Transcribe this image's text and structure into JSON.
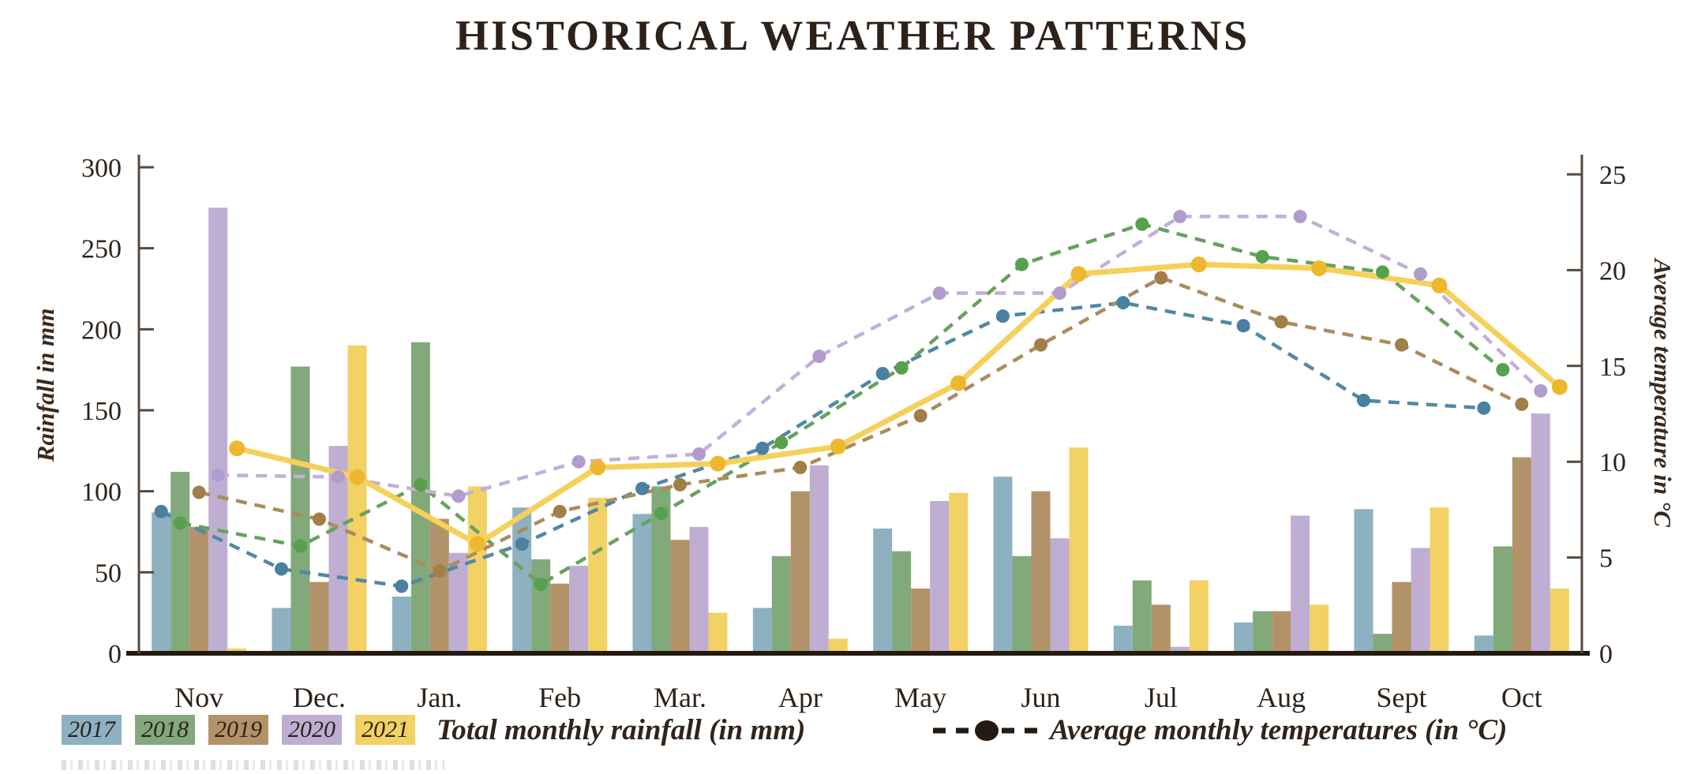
{
  "title": "HISTORICAL WEATHER PATTERNS",
  "chart_data": {
    "type": [
      "bar",
      "line"
    ],
    "categories": [
      "Nov",
      "Dec.",
      "Jan.",
      "Feb",
      "Mar.",
      "Apr",
      "May",
      "Jun",
      "Jul",
      "Aug",
      "Sept",
      "Oct"
    ],
    "left_axis": {
      "label": "Rainfall in mm",
      "ticks": [
        0,
        50,
        100,
        150,
        200,
        250,
        300
      ],
      "range": [
        0,
        300
      ]
    },
    "right_axis": {
      "label": "Average temperature in °C",
      "ticks": [
        0,
        5,
        10,
        15,
        20,
        25
      ],
      "range": [
        0,
        25
      ]
    },
    "grid": "off",
    "bar_series": [
      {
        "name": "2017",
        "color": "#8db1c0",
        "values": [
          87,
          28,
          35,
          90,
          86,
          28,
          77,
          109,
          17,
          19,
          89,
          11
        ]
      },
      {
        "name": "2018",
        "color": "#81a97a",
        "values": [
          112,
          177,
          192,
          58,
          103,
          60,
          63,
          60,
          45,
          26,
          12,
          66
        ]
      },
      {
        "name": "2019",
        "color": "#b29268",
        "values": [
          78,
          44,
          83,
          43,
          70,
          100,
          40,
          100,
          30,
          26,
          44,
          121
        ]
      },
      {
        "name": "2020",
        "color": "#bfaed2",
        "values": [
          275,
          128,
          62,
          54,
          78,
          116,
          94,
          71,
          4,
          85,
          65,
          148
        ]
      },
      {
        "name": "2021",
        "color": "#f2d165",
        "values": [
          3,
          190,
          103,
          96,
          25,
          9,
          99,
          127,
          45,
          30,
          90,
          40
        ]
      }
    ],
    "line_series": [
      {
        "name": "2017",
        "color": "#5288a5",
        "dot_color": "#4a80a0",
        "dashed": true,
        "values": [
          7.4,
          4.4,
          3.5,
          5.7,
          8.6,
          10.7,
          14.6,
          17.6,
          18.3,
          17.1,
          13.2,
          12.8
        ]
      },
      {
        "name": "2018",
        "color": "#66a25d",
        "dot_color": "#57a04d",
        "dashed": true,
        "values": [
          6.8,
          5.6,
          8.8,
          3.6,
          7.3,
          11.0,
          14.9,
          20.3,
          22.4,
          20.7,
          19.9,
          14.8
        ]
      },
      {
        "name": "2019",
        "color": "#ab8c5d",
        "dot_color": "#a07f49",
        "dashed": true,
        "values": [
          8.4,
          7.0,
          4.3,
          7.4,
          8.8,
          9.7,
          12.4,
          16.1,
          19.6,
          17.3,
          16.1,
          13.0
        ]
      },
      {
        "name": "2020",
        "color": "#c4afd9",
        "dot_color": "#b29cce",
        "dashed": true,
        "values": [
          9.3,
          9.2,
          8.2,
          10.0,
          10.4,
          15.5,
          18.8,
          18.8,
          22.8,
          22.8,
          19.8,
          13.7
        ]
      },
      {
        "name": "2021",
        "color": "#f5d15c",
        "dot_color": "#edb82e",
        "dashed": false,
        "values": [
          10.7,
          9.2,
          5.7,
          9.7,
          9.9,
          10.8,
          14.1,
          19.8,
          20.3,
          20.1,
          19.2,
          13.9
        ]
      }
    ],
    "legend": {
      "bars_label": "Total monthly rainfall (in mm)",
      "lines_label": "Average monthly temperatures (in °C)"
    }
  }
}
